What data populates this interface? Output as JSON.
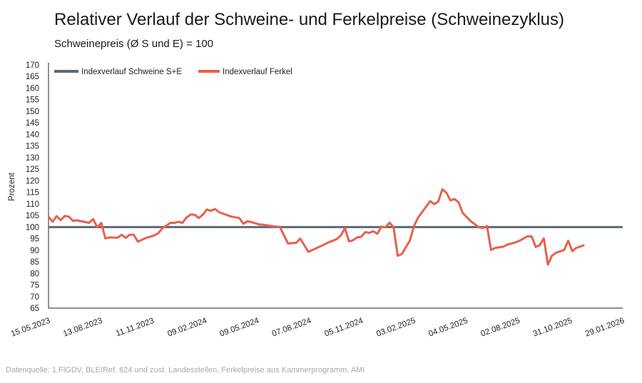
{
  "chart_data": {
    "type": "line",
    "title": "Relativer Verlauf der Schweine- und Ferkelpreise (Schweinezyklus)",
    "subtitle": "Schweinepreis (Ø S und E) = 100",
    "ylabel": "Prozent",
    "xlabel": "",
    "ylim": [
      65,
      170
    ],
    "yticks": [
      "65",
      "70",
      "75",
      "80",
      "85",
      "90",
      "95",
      "100",
      "105",
      "110",
      "115",
      "120",
      "125",
      "130",
      "135",
      "140",
      "145",
      "150",
      "155",
      "160",
      "165",
      "170"
    ],
    "xlim": [
      "2023-05-15",
      "2026-01-29"
    ],
    "xticks": [
      "15.05.2023",
      "13.08.2023",
      "11.11.2023",
      "09.02.2024",
      "09.05.2024",
      "07.08.2024",
      "05.11.2024",
      "03.02.2025",
      "04.05.2025",
      "02.08.2025",
      "31.10.2025",
      "29.01.2026"
    ],
    "grid": false,
    "legend_position": "top-left",
    "series": [
      {
        "name": "Indexverlauf Schweine S+E",
        "color": "#5f6977",
        "constant": 100
      },
      {
        "name": "Indexverlauf Ferkel",
        "color": "#e8604c",
        "points": [
          [
            "2023-05-15",
            104.5
          ],
          [
            "2023-05-22",
            102.3
          ],
          [
            "2023-05-29",
            104.7
          ],
          [
            "2023-06-05",
            103
          ],
          [
            "2023-06-12",
            104.8
          ],
          [
            "2023-06-19",
            104.5
          ],
          [
            "2023-06-26",
            102.7
          ],
          [
            "2023-07-03",
            102.9
          ],
          [
            "2023-07-24",
            101.8
          ],
          [
            "2023-07-31",
            103.5
          ],
          [
            "2023-08-07",
            99.9
          ],
          [
            "2023-08-14",
            101.8
          ],
          [
            "2023-08-21",
            95.1
          ],
          [
            "2023-08-28",
            95.5
          ],
          [
            "2023-09-11",
            95.4
          ],
          [
            "2023-09-18",
            96.7
          ],
          [
            "2023-09-25",
            95.3
          ],
          [
            "2023-10-02",
            96.7
          ],
          [
            "2023-10-09",
            96.7
          ],
          [
            "2023-10-16",
            93.7
          ],
          [
            "2023-10-30",
            95.3
          ],
          [
            "2023-11-13",
            96.3
          ],
          [
            "2023-11-20",
            97.3
          ],
          [
            "2023-11-27",
            99.4
          ],
          [
            "2023-12-11",
            101.8
          ],
          [
            "2023-12-18",
            101.8
          ],
          [
            "2023-12-25",
            102.3
          ],
          [
            "2024-01-01",
            101.8
          ],
          [
            "2024-01-08",
            104.1
          ],
          [
            "2024-01-15",
            105.4
          ],
          [
            "2024-01-22",
            105.3
          ],
          [
            "2024-01-29",
            103.9
          ],
          [
            "2024-02-05",
            105.3
          ],
          [
            "2024-02-12",
            107.6
          ],
          [
            "2024-02-19",
            107
          ],
          [
            "2024-02-26",
            107.8
          ],
          [
            "2024-03-04",
            106.4
          ],
          [
            "2024-03-25",
            104.5
          ],
          [
            "2024-04-08",
            103.9
          ],
          [
            "2024-04-15",
            101.4
          ],
          [
            "2024-04-22",
            102.5
          ],
          [
            "2024-04-29",
            102.1
          ],
          [
            "2024-05-13",
            101.1
          ],
          [
            "2024-05-20",
            101
          ],
          [
            "2024-06-03",
            100.4
          ],
          [
            "2024-06-17",
            100
          ],
          [
            "2024-07-01",
            92.9
          ],
          [
            "2024-07-15",
            93.2
          ],
          [
            "2024-07-22",
            95
          ],
          [
            "2024-08-05",
            89.3
          ],
          [
            "2024-08-26",
            91.7
          ],
          [
            "2024-09-09",
            93.4
          ],
          [
            "2024-09-23",
            94.8
          ],
          [
            "2024-09-30",
            96.3
          ],
          [
            "2024-10-07",
            99.6
          ],
          [
            "2024-10-14",
            93.8
          ],
          [
            "2024-10-21",
            94.3
          ],
          [
            "2024-10-28",
            95.5
          ],
          [
            "2024-11-04",
            95.8
          ],
          [
            "2024-11-11",
            97.8
          ],
          [
            "2024-11-18",
            97.5
          ],
          [
            "2024-11-25",
            98.2
          ],
          [
            "2024-12-02",
            97.1
          ],
          [
            "2024-12-09",
            100.2
          ],
          [
            "2024-12-16",
            99.9
          ],
          [
            "2024-12-23",
            101.9
          ],
          [
            "2024-12-30",
            99.9
          ],
          [
            "2025-01-06",
            87.6
          ],
          [
            "2025-01-13",
            88.3
          ],
          [
            "2025-01-27",
            94.2
          ],
          [
            "2025-02-03",
            100.4
          ],
          [
            "2025-02-10",
            104
          ],
          [
            "2025-03-03",
            111.2
          ],
          [
            "2025-03-10",
            109.9
          ],
          [
            "2025-03-17",
            111
          ],
          [
            "2025-03-24",
            116.3
          ],
          [
            "2025-03-31",
            114.8
          ],
          [
            "2025-04-07",
            111.5
          ],
          [
            "2025-04-14",
            112.1
          ],
          [
            "2025-04-21",
            110.7
          ],
          [
            "2025-04-28",
            106.1
          ],
          [
            "2025-05-12",
            102.5
          ],
          [
            "2025-05-26",
            99.9
          ],
          [
            "2025-06-02",
            99.6
          ],
          [
            "2025-06-09",
            100.4
          ],
          [
            "2025-06-16",
            90.1
          ],
          [
            "2025-06-23",
            91
          ],
          [
            "2025-07-07",
            91.5
          ],
          [
            "2025-07-14",
            92.4
          ],
          [
            "2025-07-28",
            93.4
          ],
          [
            "2025-08-04",
            94.1
          ],
          [
            "2025-08-18",
            96
          ],
          [
            "2025-08-25",
            95.9
          ],
          [
            "2025-09-01",
            91.4
          ],
          [
            "2025-09-08",
            92.2
          ],
          [
            "2025-09-15",
            95.1
          ],
          [
            "2025-09-22",
            83.8
          ],
          [
            "2025-09-29",
            87.6
          ],
          [
            "2025-10-06",
            88.9
          ],
          [
            "2025-10-20",
            90.1
          ],
          [
            "2025-10-27",
            94.1
          ],
          [
            "2025-11-03",
            89.6
          ],
          [
            "2025-11-10",
            91
          ],
          [
            "2025-11-24",
            92.2
          ]
        ]
      }
    ],
    "source": "Datenquelle: 1.FlGDV, BLE/Ref. 624 und zust. Landesstellen, Ferkelpreise aus Kammerprogramm, AMI"
  }
}
